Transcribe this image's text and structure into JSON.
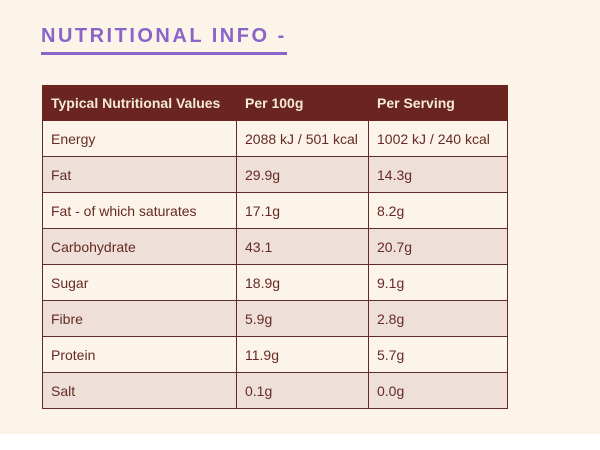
{
  "page": {
    "title": "NUTRITIONAL INFO -",
    "background_color": "#fcf4e9",
    "accent_color": "#8a64c8"
  },
  "table": {
    "columns": [
      "Typical Nutritional Values",
      "Per 100g",
      "Per Serving"
    ],
    "rows": [
      [
        "Energy",
        "2088 kJ / 501 kcal",
        "1002 kJ / 240 kcal"
      ],
      [
        "Fat",
        "29.9g",
        "14.3g"
      ],
      [
        "Fat - of which saturates",
        "17.1g",
        "8.2g"
      ],
      [
        "Carbohydrate",
        "43.1",
        "20.7g"
      ],
      [
        "Sugar",
        "18.9g",
        "9.1g"
      ],
      [
        "Fibre",
        "5.9g",
        "2.8g"
      ],
      [
        "Protein",
        "11.9g",
        "5.7g"
      ],
      [
        "Salt",
        "0.1g",
        "0.0g"
      ]
    ],
    "colors": {
      "header_bg": "#6b2521",
      "header_text": "#f6ebd8",
      "row_bg": "#fcf4e9",
      "row_alt_bg": "#eee0d8",
      "border": "#602b24",
      "cell_text": "#652a24"
    }
  }
}
